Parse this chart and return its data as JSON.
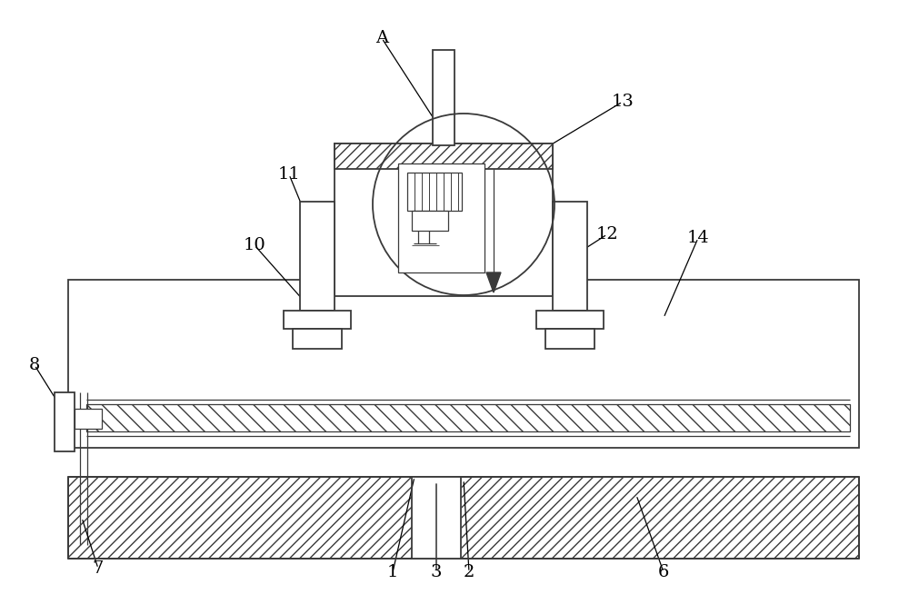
{
  "bg_color": "#ffffff",
  "line_color": "#3a3a3a",
  "lw": 1.3,
  "tlw": 0.9,
  "fig_width": 10.0,
  "fig_height": 6.76,
  "dpi": 100
}
